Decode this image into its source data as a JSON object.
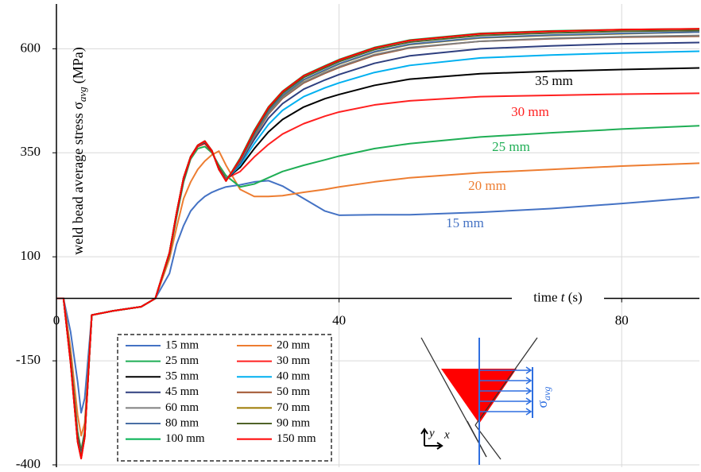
{
  "chart_data": {
    "type": "line",
    "y_label": {
      "text": "weld bead average stress σ",
      "subscript": "avg",
      "unit": "(MPa)"
    },
    "x_label": {
      "text": "time",
      "variable": "t",
      "unit": "(s)"
    },
    "xlim": [
      0,
      91
    ],
    "ylim": [
      -400,
      700
    ],
    "xticks": [
      0,
      40,
      80
    ],
    "yticks": [
      -400,
      -150,
      100,
      350,
      600
    ],
    "grid": true,
    "legend": "bottom-left",
    "x": [
      0,
      1,
      2,
      3,
      3.5,
      4,
      5,
      8,
      12,
      14,
      16,
      17,
      18,
      19,
      20,
      21,
      22,
      23,
      24,
      26,
      28,
      30,
      32,
      35,
      38,
      40,
      45,
      50,
      60,
      70,
      80,
      91
    ],
    "series": [
      {
        "name": "15 mm",
        "color": "#4472c4",
        "values": [
          0,
          0,
          -80,
          -200,
          -275,
          -240,
          -40,
          -30,
          -20,
          0,
          60,
          130,
          175,
          210,
          230,
          245,
          255,
          262,
          268,
          273,
          280,
          283,
          270,
          240,
          210,
          200,
          201,
          201,
          207,
          216,
          228,
          243
        ]
      },
      {
        "name": "20 mm",
        "color": "#ed7d31",
        "values": [
          0,
          0,
          -120,
          -280,
          -330,
          -300,
          -40,
          -30,
          -20,
          0,
          95,
          170,
          240,
          280,
          310,
          330,
          345,
          354,
          320,
          262,
          245,
          245,
          247,
          255,
          262,
          268,
          280,
          290,
          302,
          310,
          318,
          325
        ]
      },
      {
        "name": "25 mm",
        "color": "#1fae55",
        "values": [
          0,
          0,
          -140,
          -320,
          -365,
          -320,
          -40,
          -30,
          -20,
          0,
          105,
          195,
          280,
          335,
          360,
          365,
          350,
          320,
          295,
          268,
          275,
          290,
          305,
          320,
          333,
          342,
          360,
          372,
          388,
          398,
          407,
          415
        ]
      },
      {
        "name": "30 mm",
        "color": "#ff2020",
        "values": [
          0,
          0,
          -145,
          -330,
          -372,
          -325,
          -40,
          -30,
          -20,
          0,
          108,
          200,
          285,
          338,
          365,
          372,
          352,
          315,
          288,
          305,
          340,
          370,
          395,
          420,
          438,
          448,
          465,
          475,
          485,
          488,
          491,
          493
        ]
      },
      {
        "name": "35 mm",
        "color": "#000000",
        "values": [
          0,
          0,
          -148,
          -335,
          -375,
          -328,
          -40,
          -30,
          -20,
          0,
          108,
          202,
          287,
          340,
          367,
          375,
          354,
          312,
          287,
          315,
          360,
          400,
          430,
          460,
          480,
          490,
          512,
          527,
          540,
          546,
          550,
          554
        ]
      },
      {
        "name": "40 mm",
        "color": "#00b0f0",
        "values": [
          0,
          0,
          -150,
          -338,
          -377,
          -330,
          -40,
          -30,
          -20,
          0,
          110,
          203,
          288,
          340,
          367,
          376,
          355,
          311,
          286,
          320,
          372,
          418,
          452,
          485,
          506,
          518,
          543,
          560,
          578,
          585,
          590,
          594
        ]
      },
      {
        "name": "45 mm",
        "color": "#2f3f7f",
        "values": [
          0,
          0,
          -150,
          -340,
          -378,
          -330,
          -40,
          -30,
          -20,
          0,
          110,
          204,
          289,
          341,
          368,
          377,
          355,
          310,
          285,
          325,
          382,
          433,
          468,
          503,
          525,
          538,
          565,
          583,
          600,
          607,
          612,
          615
        ]
      },
      {
        "name": "50 mm",
        "color": "#a0522d",
        "values": [
          0,
          0,
          -150,
          -340,
          -380,
          -331,
          -40,
          -30,
          -20,
          0,
          110,
          205,
          290,
          341,
          368,
          377,
          355,
          310,
          285,
          328,
          388,
          443,
          481,
          518,
          541,
          555,
          584,
          602,
          618,
          624,
          628,
          630
        ]
      },
      {
        "name": "60 mm",
        "color": "#7f7f7f",
        "values": [
          0,
          0,
          -152,
          -342,
          -380,
          -332,
          -40,
          -30,
          -20,
          0,
          110,
          205,
          290,
          341,
          368,
          377,
          355,
          310,
          285,
          328,
          390,
          445,
          483,
          520,
          543,
          557,
          586,
          603,
          618,
          625,
          629,
          632
        ]
      },
      {
        "name": "70 mm",
        "color": "#9c7a00",
        "values": [
          0,
          0,
          -152,
          -342,
          -382,
          -332,
          -40,
          -30,
          -20,
          0,
          110,
          205,
          290,
          341,
          368,
          378,
          355,
          310,
          284,
          330,
          393,
          449,
          487,
          525,
          548,
          563,
          592,
          610,
          626,
          632,
          636,
          640
        ]
      },
      {
        "name": "80 mm",
        "color": "#4a6fa5",
        "values": [
          0,
          0,
          -153,
          -343,
          -382,
          -333,
          -40,
          -30,
          -20,
          0,
          110,
          205,
          290,
          340,
          368,
          378,
          355,
          310,
          284,
          330,
          394,
          450,
          488,
          526,
          549,
          564,
          593,
          611,
          627,
          633,
          637,
          640
        ]
      },
      {
        "name": "90 mm",
        "color": "#4f6228",
        "values": [
          0,
          0,
          -153,
          -343,
          -383,
          -333,
          -40,
          -30,
          -20,
          0,
          110,
          205,
          290,
          340,
          368,
          378,
          355,
          310,
          283,
          333,
          398,
          455,
          493,
          531,
          554,
          569,
          598,
          616,
          632,
          638,
          642,
          644
        ]
      },
      {
        "name": "100 mm",
        "color": "#00b050",
        "values": [
          0,
          0,
          -154,
          -344,
          -384,
          -334,
          -40,
          -30,
          -20,
          0,
          110,
          205,
          290,
          340,
          368,
          378,
          355,
          310,
          282,
          337,
          404,
          460,
          498,
          536,
          559,
          574,
          603,
          621,
          637,
          643,
          646,
          648
        ]
      },
      {
        "name": "150 mm",
        "color": "#ff0000",
        "values": [
          0,
          0,
          -155,
          -345,
          -385,
          -335,
          -40,
          -30,
          -20,
          0,
          110,
          205,
          290,
          340,
          368,
          378,
          355,
          310,
          282,
          335,
          402,
          459,
          497,
          535,
          558,
          573,
          602,
          620,
          636,
          642,
          646,
          648
        ]
      }
    ],
    "inset": {
      "x_label": "x",
      "y_label": "y",
      "stress_label": "σ",
      "stress_subscript": "avg"
    }
  }
}
